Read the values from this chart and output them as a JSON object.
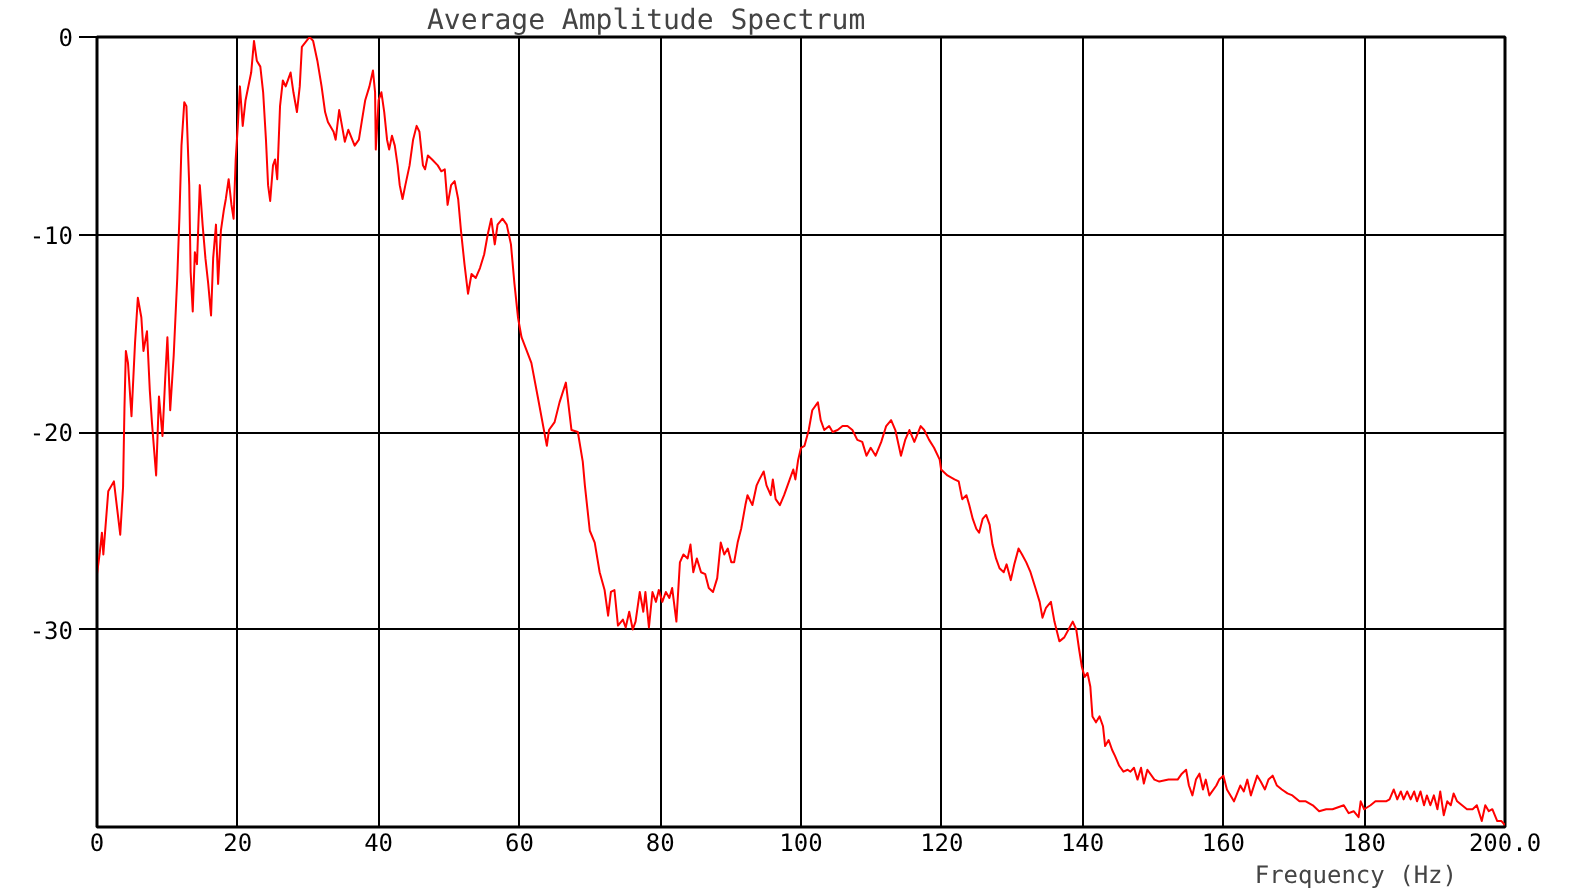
{
  "chart_data": {
    "type": "line",
    "title": "Average Amplitude Spectrum",
    "xlabel": "Frequency (Hz)",
    "xlim": [
      0,
      200
    ],
    "ylim": [
      -40,
      0
    ],
    "xticks": [
      0,
      20,
      40,
      60,
      80,
      100,
      120,
      140,
      160,
      180,
      {
        "value": 200,
        "label": "200.0"
      }
    ],
    "yticks": [
      0,
      -10,
      -20,
      -30
    ],
    "grid": true,
    "x": [
      0,
      0.4,
      0.7,
      0.9,
      1.6,
      2.4,
      3.3,
      3.7,
      3.9,
      4.1,
      4.4,
      4.9,
      5.4,
      5.8,
      6.3,
      6.6,
      7.1,
      7.5,
      7.8,
      8.4,
      8.8,
      9.3,
      9.7,
      10.0,
      10.4,
      10.9,
      11.4,
      11.7,
      12.0,
      12.4,
      12.7,
      13.1,
      13.3,
      13.6,
      13.9,
      14.2,
      14.6,
      15.0,
      15.4,
      15.8,
      16.2,
      16.5,
      16.9,
      17.2,
      17.6,
      18.0,
      18.3,
      18.7,
      19.1,
      19.4,
      19.7,
      20.0,
      20.3,
      20.7,
      21.1,
      21.9,
      22.3,
      22.7,
      23.2,
      23.6,
      24.0,
      24.3,
      24.6,
      25.0,
      25.3,
      25.6,
      26.0,
      26.4,
      26.8,
      27.5,
      27.9,
      28.4,
      28.8,
      29.1,
      30.2,
      30.7,
      31.3,
      31.9,
      32.4,
      32.8,
      33.6,
      33.9,
      34.4,
      35.2,
      35.7,
      36.6,
      37.2,
      37.6,
      38.1,
      38.7,
      39.2,
      39.5,
      39.6,
      40.0,
      40.4,
      40.8,
      41.2,
      41.5,
      41.9,
      42.3,
      42.7,
      43.0,
      43.4,
      43.8,
      44.4,
      44.9,
      45.4,
      45.8,
      46.3,
      46.6,
      47.0,
      47.6,
      48.4,
      48.9,
      49.4,
      49.8,
      50.3,
      50.8,
      51.3,
      51.7,
      52.2,
      52.7,
      53.2,
      53.8,
      54.4,
      55.0,
      55.5,
      56.0,
      56.5,
      56.9,
      57.6,
      58.2,
      58.8,
      59.3,
      59.8,
      60.3,
      61.7,
      62.6,
      63.9,
      64.2,
      65.0,
      65.7,
      66.6,
      67.4,
      68.3,
      69.0,
      69.3,
      70.0,
      70.7,
      71.4,
      72.1,
      72.6,
      73.0,
      73.5,
      74.0,
      74.7,
      75.1,
      75.6,
      76.1,
      76.5,
      77.1,
      77.6,
      77.9,
      78.4,
      78.9,
      79.4,
      79.8,
      80.3,
      80.8,
      81.3,
      81.7,
      82.3,
      82.8,
      83.3,
      83.9,
      84.3,
      84.7,
      85.2,
      85.8,
      86.4,
      86.9,
      87.5,
      88.1,
      88.6,
      89.1,
      89.6,
      90.1,
      90.5,
      91.0,
      91.5,
      92.1,
      92.4,
      93.1,
      93.7,
      94.1,
      94.7,
      95.1,
      95.7,
      96.0,
      96.4,
      97.0,
      97.6,
      98.3,
      98.9,
      99.2,
      99.6,
      100.0,
      100.5,
      101.1,
      101.6,
      102.4,
      102.8,
      103.3,
      104.0,
      104.5,
      105.2,
      105.9,
      106.6,
      107.3,
      108.0,
      108.7,
      109.3,
      109.9,
      110.6,
      111.4,
      112.1,
      112.8,
      113.4,
      114.2,
      114.8,
      115.4,
      116.1,
      117.0,
      117.5,
      118.2,
      118.9,
      119.7,
      119.9,
      120.8,
      121.8,
      122.4,
      122.9,
      123.5,
      123.9,
      124.4,
      124.9,
      125.3,
      125.8,
      126.3,
      126.8,
      127.2,
      127.7,
      128.2,
      128.8,
      129.2,
      129.8,
      130.3,
      130.9,
      131.4,
      132.0,
      132.6,
      133.3,
      133.9,
      134.3,
      134.8,
      135.5,
      136.0,
      136.7,
      137.4,
      138.0,
      138.6,
      139.1,
      139.5,
      139.9,
      140.3,
      140.7,
      141.1,
      141.4,
      141.9,
      142.4,
      142.9,
      143.2,
      143.7,
      144.2,
      144.6,
      145.2,
      145.8,
      146.4,
      146.8,
      147.3,
      147.8,
      148.3,
      148.7,
      149.2,
      150.2,
      150.9,
      152.2,
      153.5,
      154.1,
      154.7,
      155.1,
      155.6,
      156.1,
      156.6,
      157.1,
      157.5,
      158.0,
      159.0,
      159.4,
      160.0,
      160.5,
      161.5,
      162.4,
      162.9,
      163.4,
      163.9,
      164.8,
      165.3,
      165.9,
      166.4,
      167.0,
      167.6,
      168.3,
      169.1,
      169.8,
      170.8,
      171.7,
      172.7,
      173.6,
      174.6,
      175.5,
      177.1,
      177.8,
      178.5,
      179.2,
      179.5,
      180.0,
      180.9,
      181.6,
      182.3,
      183.1,
      183.6,
      184.2,
      184.7,
      185.2,
      185.6,
      186.1,
      186.6,
      187.1,
      187.5,
      188.0,
      188.5,
      188.9,
      189.4,
      189.9,
      190.4,
      190.8,
      191.3,
      191.8,
      192.3,
      192.7,
      193.2,
      193.9,
      194.6,
      195.4,
      196.0,
      196.7,
      197.2,
      197.7,
      198.2,
      198.9,
      199.5,
      200.0
    ],
    "series": [
      {
        "color": "#ff0000",
        "values": [
          -27.2,
          -26.1,
          -25.1,
          -26.2,
          -23.0,
          -22.5,
          -25.2,
          -22.8,
          -18.8,
          -15.9,
          -16.5,
          -19.2,
          -15.5,
          -13.2,
          -14.2,
          -15.9,
          -14.9,
          -17.9,
          -19.5,
          -22.2,
          -18.2,
          -20.2,
          -17.2,
          -15.2,
          -18.9,
          -16.1,
          -12.2,
          -9.2,
          -5.5,
          -3.3,
          -3.5,
          -7.5,
          -11.9,
          -13.9,
          -10.9,
          -11.5,
          -7.5,
          -9.5,
          -11.2,
          -12.5,
          -14.1,
          -11.2,
          -9.5,
          -12.5,
          -9.8,
          -8.8,
          -8.2,
          -7.2,
          -8.5,
          -9.2,
          -6.2,
          -4.5,
          -2.5,
          -4.5,
          -3.2,
          -1.8,
          -0.2,
          -1.2,
          -1.5,
          -2.8,
          -5.2,
          -7.5,
          -8.3,
          -6.5,
          -6.2,
          -7.2,
          -3.5,
          -2.2,
          -2.5,
          -1.8,
          -2.8,
          -3.8,
          -2.5,
          -0.5,
          0.0,
          -0.2,
          -1.2,
          -2.5,
          -3.8,
          -4.3,
          -4.8,
          -5.2,
          -3.7,
          -5.3,
          -4.7,
          -5.5,
          -5.2,
          -4.3,
          -3.2,
          -2.5,
          -1.7,
          -2.8,
          -5.7,
          -3.2,
          -2.8,
          -3.8,
          -5.2,
          -5.7,
          -5.0,
          -5.5,
          -6.5,
          -7.5,
          -8.2,
          -7.5,
          -6.5,
          -5.2,
          -4.5,
          -4.8,
          -6.5,
          -6.7,
          -6.0,
          -6.2,
          -6.5,
          -6.8,
          -6.7,
          -8.5,
          -7.5,
          -7.3,
          -8.2,
          -9.8,
          -11.5,
          -13.0,
          -12.0,
          -12.2,
          -11.7,
          -11.0,
          -10.0,
          -9.2,
          -10.5,
          -9.5,
          -9.2,
          -9.5,
          -10.5,
          -12.5,
          -14.2,
          -15.2,
          -16.5,
          -18.2,
          -20.7,
          -19.9,
          -19.5,
          -18.5,
          -17.5,
          -19.9,
          -20.0,
          -21.5,
          -22.7,
          -25.0,
          -25.6,
          -27.1,
          -28.0,
          -29.3,
          -28.1,
          -28.0,
          -29.8,
          -29.5,
          -29.9,
          -29.1,
          -30.0,
          -29.6,
          -28.1,
          -29.1,
          -28.1,
          -29.9,
          -28.1,
          -28.6,
          -28.0,
          -28.6,
          -28.1,
          -28.4,
          -27.9,
          -29.6,
          -26.6,
          -26.2,
          -26.4,
          -25.7,
          -27.1,
          -26.4,
          -27.1,
          -27.2,
          -27.9,
          -28.1,
          -27.4,
          -25.6,
          -26.2,
          -25.9,
          -26.6,
          -26.6,
          -25.6,
          -24.9,
          -23.7,
          -23.2,
          -23.7,
          -22.7,
          -22.4,
          -22.0,
          -22.7,
          -23.2,
          -22.4,
          -23.4,
          -23.7,
          -23.2,
          -22.5,
          -21.9,
          -22.4,
          -21.4,
          -20.8,
          -20.7,
          -19.9,
          -18.9,
          -18.5,
          -19.4,
          -19.9,
          -19.7,
          -20.0,
          -19.9,
          -19.7,
          -19.7,
          -19.9,
          -20.4,
          -20.5,
          -21.2,
          -20.8,
          -21.2,
          -20.5,
          -19.7,
          -19.4,
          -19.9,
          -21.2,
          -20.4,
          -19.9,
          -20.5,
          -19.7,
          -19.9,
          -20.4,
          -20.8,
          -21.4,
          -21.9,
          -22.2,
          -22.4,
          -22.5,
          -23.4,
          -23.2,
          -23.7,
          -24.4,
          -24.9,
          -25.1,
          -24.4,
          -24.2,
          -24.7,
          -25.7,
          -26.4,
          -26.9,
          -27.1,
          -26.7,
          -27.5,
          -26.7,
          -25.9,
          -26.2,
          -26.6,
          -27.1,
          -27.9,
          -28.6,
          -29.4,
          -28.9,
          -28.6,
          -29.6,
          -30.6,
          -30.4,
          -30.0,
          -29.6,
          -30.0,
          -31.0,
          -31.9,
          -32.4,
          -32.2,
          -32.9,
          -34.4,
          -34.7,
          -34.4,
          -34.9,
          -35.9,
          -35.6,
          -36.1,
          -36.4,
          -36.9,
          -37.2,
          -37.1,
          -37.2,
          -37.0,
          -37.6,
          -37.0,
          -37.8,
          -37.1,
          -37.6,
          -37.7,
          -37.6,
          -37.6,
          -37.3,
          -37.1,
          -37.9,
          -38.4,
          -37.6,
          -37.3,
          -38.1,
          -37.6,
          -38.4,
          -37.9,
          -37.6,
          -37.4,
          -38.1,
          -38.7,
          -37.9,
          -38.2,
          -37.6,
          -38.4,
          -37.4,
          -37.7,
          -38.1,
          -37.6,
          -37.4,
          -37.9,
          -38.1,
          -38.3,
          -38.4,
          -38.7,
          -38.7,
          -38.9,
          -39.2,
          -39.1,
          -39.1,
          -38.9,
          -39.3,
          -39.2,
          -39.5,
          -38.7,
          -39.1,
          -38.9,
          -38.7,
          -38.7,
          -38.7,
          -38.6,
          -38.1,
          -38.6,
          -38.2,
          -38.6,
          -38.2,
          -38.6,
          -38.2,
          -38.7,
          -38.2,
          -38.9,
          -38.4,
          -38.9,
          -38.4,
          -39.1,
          -38.2,
          -39.4,
          -38.7,
          -38.9,
          -38.3,
          -38.7,
          -38.9,
          -39.1,
          -39.1,
          -38.9,
          -39.7,
          -38.9,
          -39.2,
          -39.1,
          -39.7,
          -39.7,
          -39.9
        ]
      }
    ]
  }
}
